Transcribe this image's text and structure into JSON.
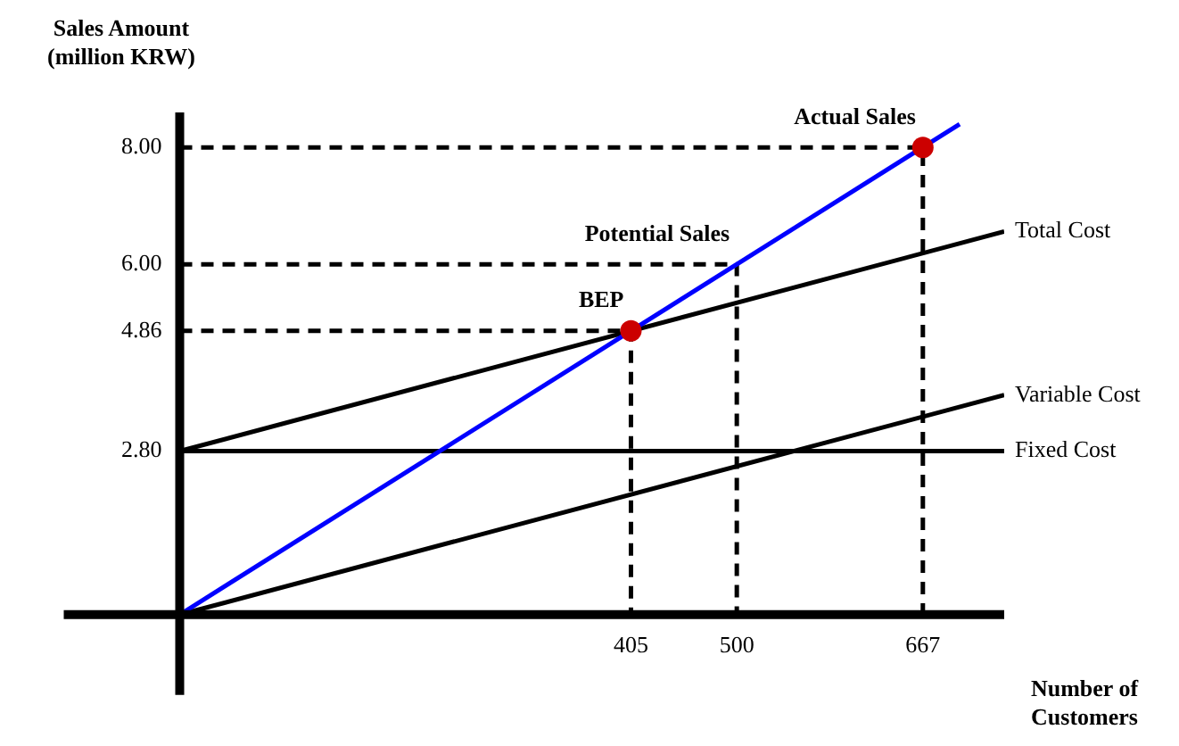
{
  "chart_data": {
    "type": "line",
    "ylabel": "Sales Amount (million KRW)",
    "xlabel": "Number of Customers",
    "xlim": [
      0,
      740
    ],
    "ylim": [
      0,
      8.6
    ],
    "xticks": [
      405,
      500,
      667
    ],
    "yticks": [
      {
        "value": 2.8,
        "label": "2.80"
      },
      {
        "value": 4.86,
        "label": "4.86"
      },
      {
        "value": 6,
        "label": "6.00"
      },
      {
        "value": 8,
        "label": "8.00"
      }
    ],
    "grid": false,
    "legend": false,
    "marker": "none",
    "annotations": [
      {
        "text": "BEP",
        "x": 405,
        "y": 4.86
      },
      {
        "text": "Potential Sales",
        "x": 500,
        "y": 6
      },
      {
        "text": "Actual Sales",
        "x": 667,
        "y": 8
      }
    ],
    "series": [
      {
        "color": "#000000",
        "line_style": "dashed",
        "x": [
          0,
          405,
          405
        ],
        "values": [
          4.86,
          4.86,
          0
        ]
      },
      {
        "color": "#000000",
        "line_style": "dashed",
        "x": [
          0,
          500,
          500
        ],
        "values": [
          6,
          6,
          0
        ]
      },
      {
        "color": "#000000",
        "line_style": "dashed",
        "x": [
          0,
          667,
          667
        ],
        "values": [
          8,
          8,
          0
        ]
      },
      {
        "name": "Total Cost",
        "color": "#000000",
        "x": [
          0,
          740
        ],
        "values": [
          2.8,
          6.56
        ]
      },
      {
        "name": "Variable Cost",
        "color": "#000000",
        "x": [
          0,
          740
        ],
        "values": [
          0,
          3.76
        ]
      },
      {
        "name": "Fixed Cost",
        "color": "#000000",
        "x": [
          0,
          740
        ],
        "values": [
          2.8,
          2.8
        ]
      },
      {
        "color": "#0000ff",
        "x": [
          0,
          700
        ],
        "values": [
          0,
          8.4
        ]
      },
      {
        "type": "scatter",
        "color": "#cc0000",
        "marker": "circle",
        "x": [
          405,
          667
        ],
        "values": [
          4.86,
          8
        ]
      }
    ]
  }
}
